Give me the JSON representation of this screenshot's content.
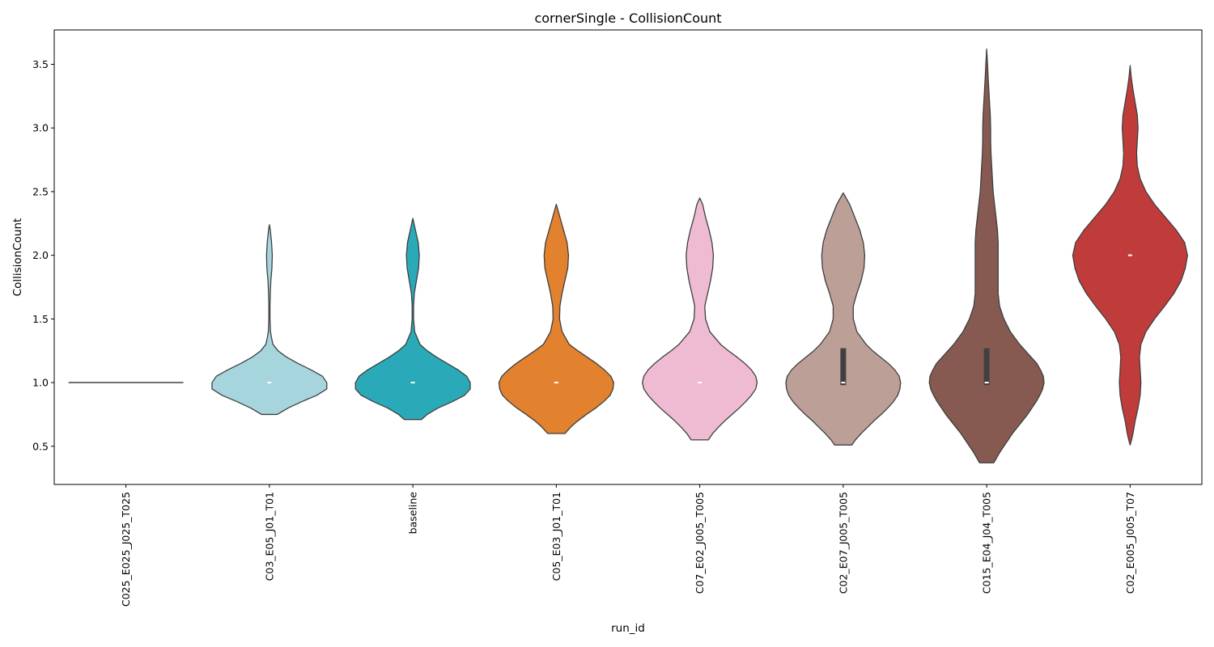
{
  "chart_data": {
    "type": "violin",
    "title": "cornerSingle - CollisionCount",
    "xlabel": "run_id",
    "ylabel": "CollisionCount",
    "ylim": [
      0.2,
      3.77
    ],
    "yticks": [
      0.5,
      1.0,
      1.5,
      2.0,
      2.5,
      3.0,
      3.5
    ],
    "ytick_labels": [
      "0.5",
      "1.0",
      "1.5",
      "2.0",
      "2.5",
      "3.0",
      "3.5"
    ],
    "grid": false,
    "categories": [
      "C025_E025_J025_T025",
      "C03_E05_J01_T01",
      "baseline",
      "C05_E03_J01_T01",
      "C07_E02_J005_T005",
      "C02_E07_J005_T005",
      "C015_E04_J04_T005",
      "C02_E005_J005_T07"
    ],
    "series": [
      {
        "category": "C025_E025_J025_T025",
        "color": "#404040",
        "median": 1.0,
        "q1": 1.0,
        "q3": 1.0,
        "min_y": 1.0,
        "max_y": 1.0,
        "degenerate_width": 0.8,
        "profile": []
      },
      {
        "category": "C03_E05_J01_T01",
        "color": "#A6D5DE",
        "median": 1.0,
        "q1": 1.0,
        "q3": 1.0,
        "min_y": 0.75,
        "max_y": 2.24,
        "profile": [
          [
            0.75,
            0.11
          ],
          [
            0.8,
            0.26
          ],
          [
            0.85,
            0.45
          ],
          [
            0.9,
            0.66
          ],
          [
            0.95,
            0.8
          ],
          [
            1.0,
            0.8
          ],
          [
            1.05,
            0.74
          ],
          [
            1.1,
            0.58
          ],
          [
            1.15,
            0.4
          ],
          [
            1.2,
            0.24
          ],
          [
            1.25,
            0.12
          ],
          [
            1.3,
            0.05
          ],
          [
            1.35,
            0.03
          ],
          [
            1.4,
            0.015
          ],
          [
            1.5,
            0.008
          ],
          [
            1.6,
            0.008
          ],
          [
            1.7,
            0.012
          ],
          [
            1.8,
            0.02
          ],
          [
            1.9,
            0.035
          ],
          [
            2.0,
            0.04
          ],
          [
            2.1,
            0.03
          ],
          [
            2.2,
            0.012
          ],
          [
            2.24,
            0.0
          ]
        ]
      },
      {
        "category": "baseline",
        "color": "#2AAAB8",
        "median": 1.0,
        "q1": 1.0,
        "q3": 1.0,
        "min_y": 0.71,
        "max_y": 2.29,
        "profile": [
          [
            0.71,
            0.12
          ],
          [
            0.75,
            0.2
          ],
          [
            0.8,
            0.35
          ],
          [
            0.85,
            0.55
          ],
          [
            0.9,
            0.72
          ],
          [
            0.95,
            0.8
          ],
          [
            1.0,
            0.8
          ],
          [
            1.05,
            0.75
          ],
          [
            1.1,
            0.63
          ],
          [
            1.15,
            0.48
          ],
          [
            1.2,
            0.33
          ],
          [
            1.25,
            0.2
          ],
          [
            1.3,
            0.1
          ],
          [
            1.4,
            0.025
          ],
          [
            1.5,
            0.01
          ],
          [
            1.6,
            0.01
          ],
          [
            1.7,
            0.02
          ],
          [
            1.8,
            0.05
          ],
          [
            1.9,
            0.08
          ],
          [
            2.0,
            0.09
          ],
          [
            2.1,
            0.075
          ],
          [
            2.2,
            0.035
          ],
          [
            2.29,
            0.0
          ]
        ]
      },
      {
        "category": "C05_E03_J01_T01",
        "color": "#E2812E",
        "median": 1.0,
        "q1": 1.0,
        "q3": 1.0,
        "min_y": 0.6,
        "max_y": 2.4,
        "profile": [
          [
            0.6,
            0.12
          ],
          [
            0.65,
            0.2
          ],
          [
            0.7,
            0.3
          ],
          [
            0.75,
            0.42
          ],
          [
            0.8,
            0.55
          ],
          [
            0.85,
            0.66
          ],
          [
            0.9,
            0.75
          ],
          [
            0.95,
            0.79
          ],
          [
            1.0,
            0.8
          ],
          [
            1.05,
            0.76
          ],
          [
            1.1,
            0.67
          ],
          [
            1.15,
            0.56
          ],
          [
            1.2,
            0.43
          ],
          [
            1.25,
            0.3
          ],
          [
            1.3,
            0.18
          ],
          [
            1.4,
            0.08
          ],
          [
            1.5,
            0.045
          ],
          [
            1.6,
            0.05
          ],
          [
            1.7,
            0.08
          ],
          [
            1.8,
            0.12
          ],
          [
            1.9,
            0.16
          ],
          [
            2.0,
            0.17
          ],
          [
            2.1,
            0.15
          ],
          [
            2.2,
            0.1
          ],
          [
            2.3,
            0.05
          ],
          [
            2.4,
            0.0
          ]
        ]
      },
      {
        "category": "C07_E02_J005_T005",
        "color": "#EFBBD3",
        "median": 1.0,
        "q1": 1.0,
        "q3": 1.0,
        "min_y": 0.55,
        "max_y": 2.45,
        "profile": [
          [
            0.55,
            0.12
          ],
          [
            0.6,
            0.18
          ],
          [
            0.65,
            0.26
          ],
          [
            0.7,
            0.35
          ],
          [
            0.75,
            0.45
          ],
          [
            0.8,
            0.55
          ],
          [
            0.85,
            0.64
          ],
          [
            0.9,
            0.72
          ],
          [
            0.95,
            0.78
          ],
          [
            1.0,
            0.8
          ],
          [
            1.05,
            0.78
          ],
          [
            1.1,
            0.72
          ],
          [
            1.15,
            0.63
          ],
          [
            1.2,
            0.52
          ],
          [
            1.25,
            0.4
          ],
          [
            1.3,
            0.29
          ],
          [
            1.4,
            0.14
          ],
          [
            1.5,
            0.08
          ],
          [
            1.6,
            0.07
          ],
          [
            1.7,
            0.11
          ],
          [
            1.8,
            0.15
          ],
          [
            1.9,
            0.18
          ],
          [
            2.0,
            0.19
          ],
          [
            2.1,
            0.17
          ],
          [
            2.2,
            0.13
          ],
          [
            2.3,
            0.08
          ],
          [
            2.4,
            0.04
          ],
          [
            2.45,
            0.0
          ]
        ]
      },
      {
        "category": "C02_E07_J005_T005",
        "color": "#BC9F97",
        "median": 1.0,
        "q1": 0.98,
        "q3": 1.27,
        "min_y": 0.51,
        "max_y": 2.49,
        "profile": [
          [
            0.51,
            0.12
          ],
          [
            0.55,
            0.17
          ],
          [
            0.6,
            0.25
          ],
          [
            0.65,
            0.34
          ],
          [
            0.7,
            0.43
          ],
          [
            0.75,
            0.53
          ],
          [
            0.8,
            0.62
          ],
          [
            0.85,
            0.7
          ],
          [
            0.9,
            0.76
          ],
          [
            0.95,
            0.79
          ],
          [
            1.0,
            0.8
          ],
          [
            1.05,
            0.78
          ],
          [
            1.1,
            0.72
          ],
          [
            1.15,
            0.63
          ],
          [
            1.2,
            0.52
          ],
          [
            1.25,
            0.41
          ],
          [
            1.3,
            0.32
          ],
          [
            1.4,
            0.19
          ],
          [
            1.5,
            0.14
          ],
          [
            1.6,
            0.14
          ],
          [
            1.7,
            0.19
          ],
          [
            1.8,
            0.25
          ],
          [
            1.9,
            0.29
          ],
          [
            2.0,
            0.3
          ],
          [
            2.1,
            0.28
          ],
          [
            2.2,
            0.23
          ],
          [
            2.3,
            0.16
          ],
          [
            2.4,
            0.09
          ],
          [
            2.49,
            0.0
          ]
        ]
      },
      {
        "category": "C015_E04_J04_T005",
        "color": "#865A51",
        "median": 1.0,
        "q1": 0.98,
        "q3": 1.27,
        "min_y": 0.37,
        "max_y": 3.62,
        "profile": [
          [
            0.37,
            0.1
          ],
          [
            0.45,
            0.18
          ],
          [
            0.5,
            0.24
          ],
          [
            0.55,
            0.3
          ],
          [
            0.6,
            0.36
          ],
          [
            0.65,
            0.43
          ],
          [
            0.7,
            0.5
          ],
          [
            0.75,
            0.57
          ],
          [
            0.8,
            0.63
          ],
          [
            0.85,
            0.69
          ],
          [
            0.9,
            0.74
          ],
          [
            0.95,
            0.78
          ],
          [
            1.0,
            0.8
          ],
          [
            1.05,
            0.79
          ],
          [
            1.1,
            0.75
          ],
          [
            1.15,
            0.7
          ],
          [
            1.2,
            0.62
          ],
          [
            1.25,
            0.54
          ],
          [
            1.3,
            0.46
          ],
          [
            1.4,
            0.33
          ],
          [
            1.5,
            0.24
          ],
          [
            1.6,
            0.18
          ],
          [
            1.7,
            0.16
          ],
          [
            1.8,
            0.16
          ],
          [
            1.9,
            0.16
          ],
          [
            2.0,
            0.16
          ],
          [
            2.1,
            0.16
          ],
          [
            2.2,
            0.15
          ],
          [
            2.3,
            0.13
          ],
          [
            2.4,
            0.11
          ],
          [
            2.5,
            0.09
          ],
          [
            2.6,
            0.08
          ],
          [
            2.7,
            0.07
          ],
          [
            2.8,
            0.06
          ],
          [
            2.9,
            0.055
          ],
          [
            3.0,
            0.055
          ],
          [
            3.1,
            0.05
          ],
          [
            3.2,
            0.04
          ],
          [
            3.3,
            0.03
          ],
          [
            3.4,
            0.02
          ],
          [
            3.5,
            0.012
          ],
          [
            3.62,
            0.0
          ]
        ]
      },
      {
        "category": "C02_E005_J005_T07",
        "color": "#C03C3B",
        "median": 2.0,
        "q1": 2.0,
        "q3": 2.0,
        "min_y": 0.51,
        "max_y": 3.49,
        "profile": [
          [
            0.51,
            0.0
          ],
          [
            0.55,
            0.02
          ],
          [
            0.6,
            0.04
          ],
          [
            0.7,
            0.07
          ],
          [
            0.8,
            0.11
          ],
          [
            0.9,
            0.14
          ],
          [
            1.0,
            0.15
          ],
          [
            1.1,
            0.14
          ],
          [
            1.2,
            0.13
          ],
          [
            1.3,
            0.15
          ],
          [
            1.4,
            0.22
          ],
          [
            1.5,
            0.34
          ],
          [
            1.6,
            0.48
          ],
          [
            1.7,
            0.61
          ],
          [
            1.8,
            0.71
          ],
          [
            1.9,
            0.77
          ],
          [
            2.0,
            0.8
          ],
          [
            2.1,
            0.76
          ],
          [
            2.2,
            0.64
          ],
          [
            2.3,
            0.49
          ],
          [
            2.4,
            0.34
          ],
          [
            2.5,
            0.22
          ],
          [
            2.6,
            0.14
          ],
          [
            2.7,
            0.1
          ],
          [
            2.8,
            0.09
          ],
          [
            2.9,
            0.1
          ],
          [
            3.0,
            0.11
          ],
          [
            3.1,
            0.1
          ],
          [
            3.2,
            0.07
          ],
          [
            3.3,
            0.04
          ],
          [
            3.4,
            0.015
          ],
          [
            3.49,
            0.0
          ]
        ]
      }
    ]
  }
}
